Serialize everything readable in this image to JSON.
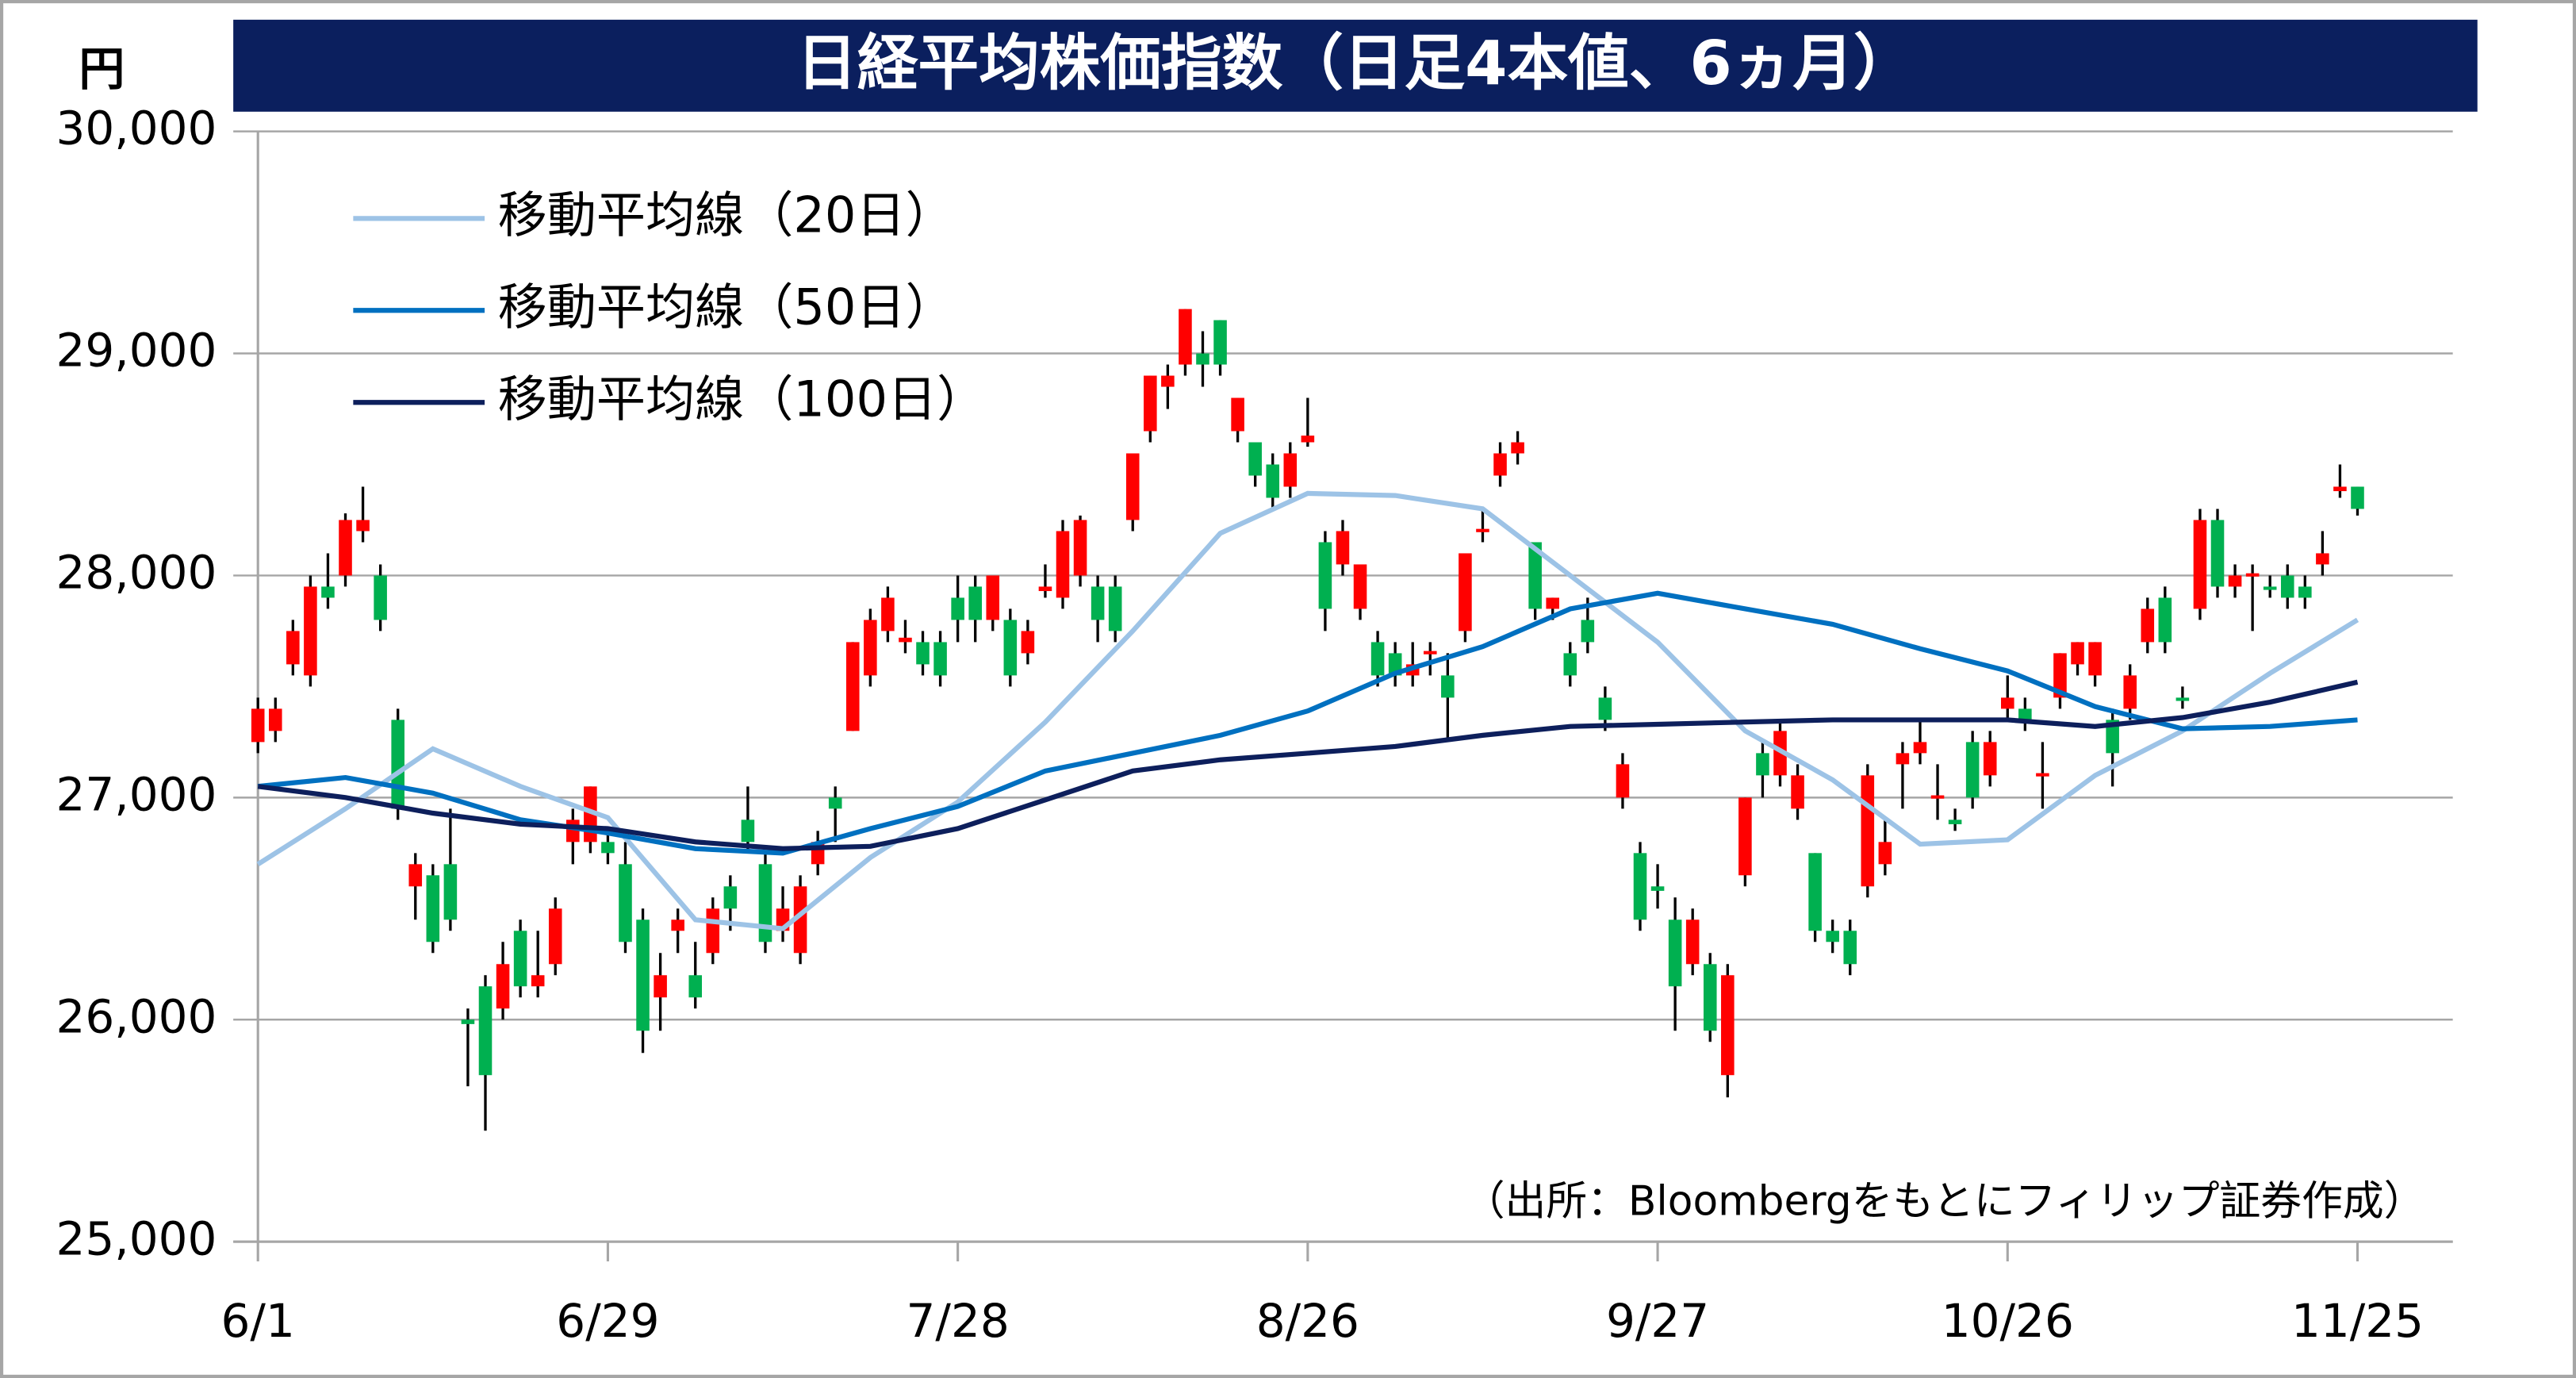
{
  "chart_data": {
    "type": "candlestick",
    "title": "日経平均株価指数（日足4本値、6ヵ月）",
    "y_unit": "円",
    "source": "（出所：Bloombergをもとにフィリップ証券作成）",
    "categories": [
      "6/1",
      null,
      null,
      null,
      null,
      null,
      null,
      null,
      null,
      null,
      null,
      null,
      null,
      null,
      null,
      null,
      null,
      null,
      null,
      null,
      "6/29",
      null,
      null,
      null,
      null,
      null,
      null,
      null,
      null,
      null,
      null,
      null,
      null,
      null,
      null,
      null,
      null,
      null,
      null,
      null,
      "7/28",
      null,
      null,
      null,
      null,
      null,
      null,
      null,
      null,
      null,
      null,
      null,
      null,
      null,
      null,
      null,
      null,
      null,
      null,
      null,
      "8/26",
      null,
      null,
      null,
      null,
      null,
      null,
      null,
      null,
      null,
      null,
      null,
      null,
      null,
      null,
      null,
      null,
      null,
      null,
      null,
      "9/27",
      null,
      null,
      null,
      null,
      null,
      null,
      null,
      null,
      null,
      null,
      null,
      null,
      null,
      null,
      null,
      null,
      null,
      null,
      null,
      "10/26",
      null,
      null,
      null,
      null,
      null,
      null,
      null,
      null,
      null,
      null,
      null,
      null,
      null,
      null,
      null,
      null,
      null,
      null,
      null,
      "11/25"
    ],
    "open": [
      27250,
      27300,
      27600,
      27550,
      27950,
      28000,
      28200,
      28000,
      27350,
      26600,
      26650,
      26700,
      26000,
      26150,
      26050,
      26400,
      26150,
      26250,
      26800,
      26800,
      26800,
      26700,
      26450,
      26100,
      26400,
      26200,
      26300,
      26600,
      26900,
      26700,
      26400,
      26300,
      26700,
      27000,
      27300,
      27550,
      27750,
      27700,
      27700,
      27700,
      27900,
      27950,
      27800,
      27800,
      27650,
      27930,
      27900,
      28000,
      27950,
      27950,
      28250,
      28650,
      28850,
      28950,
      29000,
      29150,
      28650,
      28600,
      28500,
      28400,
      28600,
      28150,
      28050,
      27850,
      27700,
      27650,
      27550,
      27650,
      27550,
      27750,
      28200,
      28450,
      28550,
      28150,
      27850,
      27650,
      27800,
      27450,
      27000,
      26750,
      26600,
      26450,
      26250,
      26250,
      25750,
      26650,
      27200,
      27100,
      26950,
      26750,
      26400,
      26400,
      26600,
      26700,
      27150,
      27200,
      27000,
      26900,
      27250,
      27100,
      27400,
      27400,
      27100,
      27450,
      27600,
      27550,
      27350,
      27400,
      27700,
      27900,
      27450,
      27850,
      28250,
      27950,
      28000,
      27950,
      28000,
      27950,
      28050,
      28380,
      28400
    ],
    "high": [
      27450,
      27450,
      27800,
      28000,
      28100,
      28280,
      28400,
      28050,
      27400,
      26750,
      26700,
      26950,
      26050,
      26200,
      26350,
      26450,
      26400,
      26550,
      26950,
      27050,
      26850,
      26800,
      26500,
      26300,
      26500,
      26350,
      26550,
      26650,
      27050,
      26750,
      26600,
      26650,
      26850,
      27050,
      27700,
      27850,
      27950,
      27800,
      27750,
      27750,
      28000,
      28000,
      28000,
      27850,
      27800,
      28050,
      28250,
      28270,
      28000,
      28000,
      28550,
      28900,
      28950,
      29200,
      29100,
      29150,
      28800,
      28600,
      28550,
      28600,
      28800,
      28200,
      28250,
      28050,
      27750,
      27700,
      27700,
      27700,
      27650,
      28100,
      28300,
      28600,
      28650,
      28150,
      27900,
      27700,
      27900,
      27500,
      27200,
      26800,
      26700,
      26550,
      26500,
      26300,
      26250,
      27000,
      27250,
      27350,
      27150,
      26750,
      26450,
      26450,
      27150,
      26900,
      27250,
      27350,
      27150,
      26950,
      27300,
      27300,
      27550,
      27450,
      27250,
      27650,
      27700,
      27700,
      27400,
      27600,
      27900,
      27950,
      27500,
      28300,
      28300,
      28050,
      28050,
      28000,
      28050,
      28000,
      28200,
      28500,
      28400
    ],
    "low": [
      27200,
      27250,
      27550,
      27500,
      27850,
      27950,
      28150,
      27750,
      26900,
      26450,
      26300,
      26400,
      25700,
      25500,
      26000,
      26100,
      26100,
      26200,
      26700,
      26750,
      26700,
      26300,
      25850,
      25950,
      26300,
      26050,
      26250,
      26400,
      26750,
      26300,
      26350,
      26250,
      26650,
      26800,
      27300,
      27500,
      27700,
      27650,
      27550,
      27500,
      27700,
      27700,
      27750,
      27500,
      27600,
      27900,
      27850,
      27950,
      27700,
      27700,
      28200,
      28600,
      28750,
      28900,
      28850,
      28900,
      28600,
      28400,
      28300,
      28350,
      28580,
      27750,
      28000,
      27800,
      27500,
      27500,
      27500,
      27550,
      27250,
      27700,
      28150,
      28400,
      28500,
      27800,
      27800,
      27500,
      27650,
      27300,
      26950,
      26400,
      26500,
      25950,
      26200,
      25900,
      25650,
      26600,
      27000,
      27050,
      26900,
      26350,
      26300,
      26200,
      26550,
      26650,
      26950,
      27150,
      26900,
      26850,
      26950,
      27050,
      27350,
      27300,
      26950,
      27400,
      27550,
      27500,
      27050,
      27350,
      27650,
      27650,
      27400,
      27800,
      27900,
      27900,
      27750,
      27900,
      27850,
      27850,
      28000,
      28350,
      28270
    ],
    "close": [
      27400,
      27400,
      27750,
      27950,
      27900,
      28250,
      28250,
      27800,
      26950,
      26700,
      26350,
      26450,
      25980,
      25750,
      26250,
      26150,
      26200,
      26500,
      26900,
      27050,
      26750,
      26350,
      25950,
      26200,
      26450,
      26100,
      26500,
      26500,
      26800,
      26350,
      26500,
      26600,
      26800,
      26950,
      27700,
      27800,
      27900,
      27720,
      27600,
      27550,
      27800,
      27800,
      28000,
      27550,
      27750,
      27950,
      28200,
      28250,
      27800,
      27750,
      28550,
      28900,
      28900,
      29200,
      28950,
      28950,
      28800,
      28450,
      28350,
      28550,
      28630,
      27850,
      28200,
      28050,
      27550,
      27550,
      27600,
      27660,
      27450,
      28100,
      28210,
      28550,
      28600,
      27850,
      27900,
      27550,
      27700,
      27350,
      27150,
      26450,
      26580,
      26150,
      26450,
      25950,
      26200,
      27000,
      27100,
      27300,
      27100,
      26400,
      26350,
      26250,
      27100,
      26800,
      27200,
      27250,
      27010,
      26880,
      27000,
      27250,
      27450,
      27350,
      27110,
      27650,
      27700,
      27700,
      27200,
      27550,
      27850,
      27700,
      27440,
      28250,
      27950,
      28000,
      28010,
      27940,
      27900,
      27900,
      28100,
      28400,
      28300
    ],
    "up_color": "#ff0000",
    "down_color": "#00b050",
    "series": [
      {
        "name": "移動平均線（20日）",
        "color": "#9dc3e6",
        "x": [
          0,
          5,
          10,
          15,
          20,
          25,
          30,
          35,
          40,
          45,
          50,
          55,
          60,
          65,
          70,
          75,
          80,
          85,
          90,
          95,
          100,
          105,
          110,
          115,
          120
        ],
        "values": [
          26700,
          26950,
          27220,
          27050,
          26910,
          26450,
          26410,
          26730,
          26980,
          27340,
          27750,
          28190,
          28370,
          28360,
          28300,
          28000,
          27700,
          27300,
          27080,
          26790,
          26810,
          27100,
          27300,
          27560,
          27800
        ]
      },
      {
        "name": "移動平均線（50日）",
        "color": "#0070c0",
        "x": [
          0,
          5,
          10,
          15,
          20,
          25,
          30,
          35,
          40,
          45,
          50,
          55,
          60,
          65,
          70,
          75,
          80,
          85,
          90,
          95,
          100,
          105,
          110,
          115,
          120
        ],
        "values": [
          27050,
          27090,
          27020,
          26900,
          26840,
          26770,
          26750,
          26860,
          26960,
          27120,
          27200,
          27280,
          27390,
          27560,
          27680,
          27850,
          27920,
          27850,
          27780,
          27670,
          27570,
          27410,
          27310,
          27320,
          27350
        ]
      },
      {
        "name": "移動平均線（100日）",
        "color": "#0d1f5c",
        "x": [
          0,
          5,
          10,
          15,
          20,
          25,
          30,
          35,
          40,
          45,
          50,
          55,
          60,
          65,
          70,
          75,
          80,
          85,
          90,
          95,
          100,
          105,
          110,
          115,
          120
        ],
        "values": [
          27050,
          27000,
          26930,
          26880,
          26860,
          26800,
          26770,
          26780,
          26860,
          26990,
          27120,
          27170,
          27200,
          27230,
          27280,
          27320,
          27330,
          27340,
          27350,
          27350,
          27350,
          27320,
          27360,
          27430,
          27520
        ]
      }
    ],
    "ylim": [
      25000,
      30000
    ],
    "yticks": [
      {
        "value": 25000,
        "label": "25,000"
      },
      {
        "value": 26000,
        "label": "26,000"
      },
      {
        "value": 27000,
        "label": "27,000"
      },
      {
        "value": 28000,
        "label": "28,000"
      },
      {
        "value": 29000,
        "label": "29,000"
      },
      {
        "value": 30000,
        "label": "30,000"
      }
    ],
    "grid": true,
    "legend": "upper left"
  }
}
